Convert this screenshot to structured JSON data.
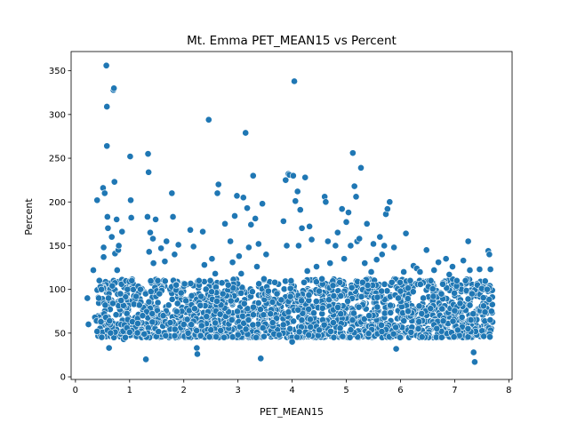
{
  "chart_data": {
    "type": "scatter",
    "title": "Mt. Emma PET_MEAN15 vs Percent",
    "xlabel": "PET_MEAN15",
    "ylabel": "Percent",
    "xlim": [
      -0.08,
      8.06
    ],
    "ylim": [
      -3,
      372
    ],
    "xticks": [
      0,
      1,
      2,
      3,
      4,
      5,
      6,
      7,
      8
    ],
    "yticks": [
      0,
      50,
      100,
      150,
      200,
      250,
      300,
      350
    ],
    "grid": false,
    "legend": "none",
    "marker_color": "#1f77b4",
    "marker_edge_color": "#ffffff",
    "points": [
      [
        0.22,
        90
      ],
      [
        0.24,
        60
      ],
      [
        0.33,
        122
      ],
      [
        0.36,
        68
      ],
      [
        0.39,
        64
      ],
      [
        0.4,
        202
      ],
      [
        0.43,
        90
      ],
      [
        0.46,
        103
      ],
      [
        0.47,
        64
      ],
      [
        0.47,
        63
      ],
      [
        0.48,
        100
      ],
      [
        0.51,
        216
      ],
      [
        0.52,
        148
      ],
      [
        0.52,
        137
      ],
      [
        0.53,
        72
      ],
      [
        0.54,
        210
      ],
      [
        0.55,
        82
      ],
      [
        0.56,
        68
      ],
      [
        0.57,
        356
      ],
      [
        0.58,
        309
      ],
      [
        0.58,
        264
      ],
      [
        0.59,
        183
      ],
      [
        0.6,
        170
      ],
      [
        0.61,
        90
      ],
      [
        0.62,
        33
      ],
      [
        0.63,
        64
      ],
      [
        0.67,
        160
      ],
      [
        0.68,
        104
      ],
      [
        0.69,
        84
      ],
      [
        0.7,
        328
      ],
      [
        0.71,
        330
      ],
      [
        0.72,
        223
      ],
      [
        0.73,
        141
      ],
      [
        0.75,
        71
      ],
      [
        0.76,
        180
      ],
      [
        0.77,
        122
      ],
      [
        0.79,
        145
      ],
      [
        0.8,
        150
      ],
      [
        0.83,
        95
      ],
      [
        0.86,
        166
      ],
      [
        0.89,
        43
      ],
      [
        0.92,
        45
      ],
      [
        0.95,
        56
      ],
      [
        0.96,
        100
      ],
      [
        1.0,
        51
      ],
      [
        1.01,
        252
      ],
      [
        1.02,
        202
      ],
      [
        1.03,
        182
      ],
      [
        1.04,
        110
      ],
      [
        1.05,
        63
      ],
      [
        1.08,
        83
      ],
      [
        1.12,
        92
      ],
      [
        1.15,
        61
      ],
      [
        1.18,
        82
      ],
      [
        1.2,
        100
      ],
      [
        1.24,
        70
      ],
      [
        1.27,
        49
      ],
      [
        1.3,
        20
      ],
      [
        1.33,
        183
      ],
      [
        1.34,
        255
      ],
      [
        1.35,
        234
      ],
      [
        1.36,
        143
      ],
      [
        1.38,
        165
      ],
      [
        1.43,
        158
      ],
      [
        1.44,
        130
      ],
      [
        1.48,
        180
      ],
      [
        1.52,
        110
      ],
      [
        1.55,
        95
      ],
      [
        1.58,
        147
      ],
      [
        1.62,
        70
      ],
      [
        1.65,
        132
      ],
      [
        1.68,
        155
      ],
      [
        1.72,
        82
      ],
      [
        1.75,
        62
      ],
      [
        1.78,
        210
      ],
      [
        1.8,
        183
      ],
      [
        1.83,
        140
      ],
      [
        1.86,
        105
      ],
      [
        1.9,
        151
      ],
      [
        1.95,
        96
      ],
      [
        2.0,
        60
      ],
      [
        2.04,
        87
      ],
      [
        2.08,
        50
      ],
      [
        2.12,
        168
      ],
      [
        2.18,
        149
      ],
      [
        2.2,
        78
      ],
      [
        2.24,
        33
      ],
      [
        2.25,
        26
      ],
      [
        2.28,
        110
      ],
      [
        2.32,
        92
      ],
      [
        2.35,
        166
      ],
      [
        2.38,
        128
      ],
      [
        2.42,
        69
      ],
      [
        2.46,
        294
      ],
      [
        2.49,
        110
      ],
      [
        2.52,
        135
      ],
      [
        2.58,
        118
      ],
      [
        2.62,
        210
      ],
      [
        2.64,
        220
      ],
      [
        2.68,
        53
      ],
      [
        2.72,
        95
      ],
      [
        2.76,
        175
      ],
      [
        2.82,
        105
      ],
      [
        2.86,
        155
      ],
      [
        2.9,
        131
      ],
      [
        2.94,
        184
      ],
      [
        2.98,
        207
      ],
      [
        3.02,
        138
      ],
      [
        3.06,
        118
      ],
      [
        3.1,
        205
      ],
      [
        3.14,
        279
      ],
      [
        3.17,
        193
      ],
      [
        3.2,
        148
      ],
      [
        3.24,
        174
      ],
      [
        3.28,
        230
      ],
      [
        3.32,
        181
      ],
      [
        3.35,
        126
      ],
      [
        3.38,
        152
      ],
      [
        3.42,
        21
      ],
      [
        3.45,
        198
      ],
      [
        3.48,
        112
      ],
      [
        3.52,
        140
      ],
      [
        3.56,
        98
      ],
      [
        3.6,
        72
      ],
      [
        3.64,
        62
      ],
      [
        3.68,
        108
      ],
      [
        3.72,
        95
      ],
      [
        3.76,
        48
      ],
      [
        3.8,
        88
      ],
      [
        3.84,
        178
      ],
      [
        3.88,
        225
      ],
      [
        3.9,
        150
      ],
      [
        3.93,
        232
      ],
      [
        3.95,
        231
      ],
      [
        3.97,
        101
      ],
      [
        4.0,
        40
      ],
      [
        4.02,
        230
      ],
      [
        4.04,
        338
      ],
      [
        4.06,
        201
      ],
      [
        4.1,
        212
      ],
      [
        4.12,
        150
      ],
      [
        4.15,
        191
      ],
      [
        4.18,
        170
      ],
      [
        4.22,
        108
      ],
      [
        4.24,
        228
      ],
      [
        4.28,
        121
      ],
      [
        4.32,
        172
      ],
      [
        4.36,
        157
      ],
      [
        4.4,
        73
      ],
      [
        4.45,
        126
      ],
      [
        4.5,
        98
      ],
      [
        4.55,
        112
      ],
      [
        4.6,
        206
      ],
      [
        4.62,
        200
      ],
      [
        4.66,
        155
      ],
      [
        4.7,
        130
      ],
      [
        4.76,
        62
      ],
      [
        4.8,
        150
      ],
      [
        4.84,
        165
      ],
      [
        4.88,
        108
      ],
      [
        4.92,
        192
      ],
      [
        4.96,
        135
      ],
      [
        5.0,
        177
      ],
      [
        5.04,
        188
      ],
      [
        5.08,
        150
      ],
      [
        5.1,
        102
      ],
      [
        5.12,
        256
      ],
      [
        5.15,
        218
      ],
      [
        5.18,
        206
      ],
      [
        5.2,
        155
      ],
      [
        5.24,
        158
      ],
      [
        5.27,
        239
      ],
      [
        5.3,
        108
      ],
      [
        5.34,
        130
      ],
      [
        5.38,
        175
      ],
      [
        5.42,
        70
      ],
      [
        5.46,
        120
      ],
      [
        5.5,
        152
      ],
      [
        5.56,
        134
      ],
      [
        5.62,
        160
      ],
      [
        5.66,
        140
      ],
      [
        5.7,
        150
      ],
      [
        5.73,
        186
      ],
      [
        5.76,
        192
      ],
      [
        5.8,
        200
      ],
      [
        5.84,
        108
      ],
      [
        5.88,
        148
      ],
      [
        5.92,
        32
      ],
      [
        5.96,
        90
      ],
      [
        6.0,
        98
      ],
      [
        6.06,
        120
      ],
      [
        6.1,
        164
      ],
      [
        6.14,
        75
      ],
      [
        6.18,
        110
      ],
      [
        6.24,
        127
      ],
      [
        6.3,
        124
      ],
      [
        6.36,
        120
      ],
      [
        6.42,
        90
      ],
      [
        6.48,
        145
      ],
      [
        6.56,
        110
      ],
      [
        6.62,
        122
      ],
      [
        6.7,
        131
      ],
      [
        6.78,
        106
      ],
      [
        6.84,
        135
      ],
      [
        6.9,
        117
      ],
      [
        6.96,
        126
      ],
      [
        7.04,
        110
      ],
      [
        7.1,
        84
      ],
      [
        7.16,
        133
      ],
      [
        7.2,
        110
      ],
      [
        7.25,
        155
      ],
      [
        7.28,
        122
      ],
      [
        7.32,
        95
      ],
      [
        7.35,
        28
      ],
      [
        7.37,
        17
      ],
      [
        7.42,
        105
      ],
      [
        7.46,
        123
      ],
      [
        7.5,
        101
      ],
      [
        7.56,
        74
      ],
      [
        7.6,
        100
      ],
      [
        7.62,
        144
      ],
      [
        7.64,
        140
      ],
      [
        7.66,
        123
      ],
      [
        7.68,
        75
      ]
    ],
    "dense_band": {
      "x_range": [
        0.4,
        7.7
      ],
      "y_range": [
        45,
        112
      ],
      "count": 1800
    }
  }
}
